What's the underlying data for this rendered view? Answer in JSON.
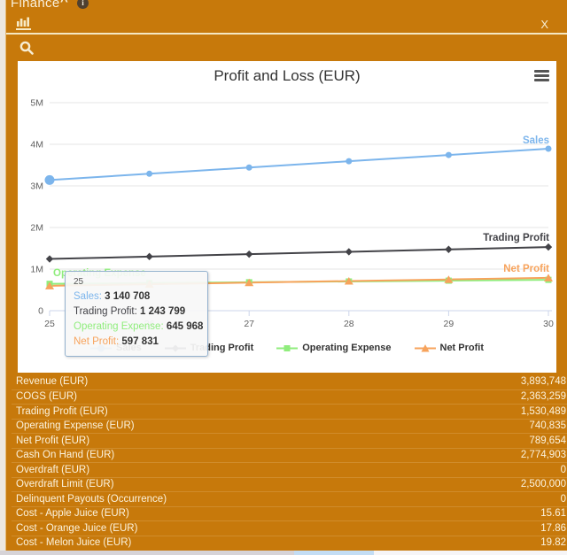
{
  "colors": {
    "panel": "#C7790B",
    "panel_text": "#F9EFD9",
    "card": "#FFFFFF",
    "grid": "#E6E6E6",
    "axis_line": "#CCD6EB",
    "axis_text": "#606060",
    "title_text": "#333333",
    "menu_icon": "#555555",
    "tooltip_border": "#93B1CE",
    "sales_blue": "#7CB5EC",
    "trading_dark": "#434348",
    "opex_green": "#90ED7D",
    "netprofit_orange": "#F7A35C"
  },
  "header": {
    "title": "Finance",
    "close_label": "X"
  },
  "icons": {
    "collapse": "chevron-up",
    "info": "i",
    "chart_tab": "bar-chart",
    "search": "magnifier",
    "chart_menu": "hamburger"
  },
  "chart": {
    "title": "Profit and Loss (EUR)"
  },
  "chart_data": {
    "type": "line",
    "title": "Profit and Loss (EUR)",
    "x": [
      25,
      26,
      27,
      28,
      29,
      30
    ],
    "series": [
      {
        "name": "Sales",
        "color": "#7CB5EC",
        "marker": "circle",
        "values": [
          3140708,
          3291316,
          3441924,
          3592532,
          3743140,
          3893748
        ]
      },
      {
        "name": "Trading Profit",
        "color": "#434348",
        "marker": "diamond",
        "values": [
          1243799,
          1301137,
          1358475,
          1415813,
          1473151,
          1530489
        ]
      },
      {
        "name": "Operating Expense",
        "color": "#90ED7D",
        "marker": "square",
        "values": [
          645968,
          664941,
          683915,
          702888,
          721862,
          740835
        ]
      },
      {
        "name": "Net Profit",
        "color": "#F7A35C",
        "marker": "triangle",
        "values": [
          597831,
          636196,
          674560,
          712925,
          751289,
          789654
        ]
      }
    ],
    "ylim": [
      0,
      5000000
    ],
    "yticks": [
      "0",
      "1M",
      "2M",
      "3M",
      "4M",
      "5M"
    ],
    "xlabel": "",
    "ylabel": "",
    "grid": true,
    "legend_position": "bottom",
    "hovered_point": {
      "series": "Sales",
      "index": 0
    }
  },
  "tooltip": {
    "header": "25",
    "rows": [
      {
        "name": "Sales",
        "value": "3 140 708",
        "color": "#7CB5EC"
      },
      {
        "name": "Trading Profit",
        "value": "1 243 799",
        "color": "#434348"
      },
      {
        "name": "Operating Expense",
        "value": "645 968",
        "color": "#90ED7D"
      },
      {
        "name": "Net Profit",
        "value": "597 831",
        "color": "#F7A35C"
      }
    ]
  },
  "table": {
    "rows": [
      {
        "label": "Revenue (EUR)",
        "value": "3,893,748"
      },
      {
        "label": "COGS (EUR)",
        "value": "2,363,259"
      },
      {
        "label": "Trading Profit (EUR)",
        "value": "1,530,489"
      },
      {
        "label": "Operating Expense (EUR)",
        "value": "740,835"
      },
      {
        "label": "Net Profit (EUR)",
        "value": "789,654"
      },
      {
        "label": "Cash On Hand (EUR)",
        "value": "2,774,903"
      },
      {
        "label": "Overdraft (EUR)",
        "value": "0"
      },
      {
        "label": "Overdraft Limit (EUR)",
        "value": "2,500,000"
      },
      {
        "label": "Delinquent Payouts (Occurrence)",
        "value": "0"
      },
      {
        "label": "Cost - Apple Juice (EUR)",
        "value": "15.61"
      },
      {
        "label": "Cost - Orange Juice (EUR)",
        "value": "17.86"
      },
      {
        "label": "Cost - Melon Juice (EUR)",
        "value": "19.82"
      }
    ]
  }
}
